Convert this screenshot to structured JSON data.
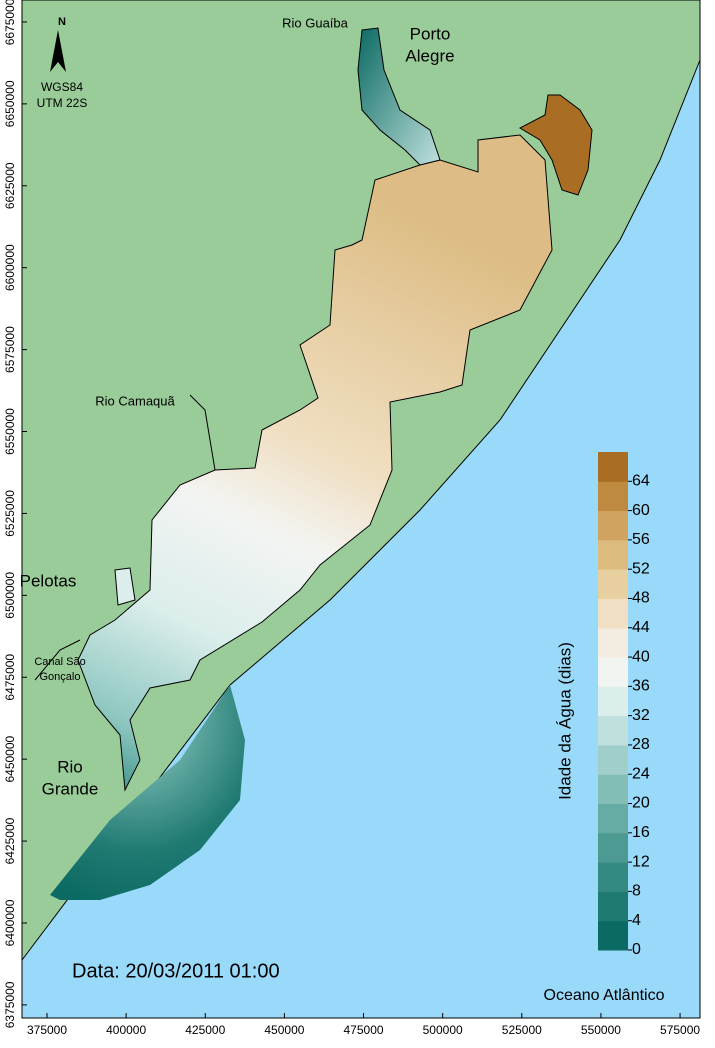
{
  "map": {
    "places": {
      "rio_guaiba": [
        "Rio Guaíba"
      ],
      "porto_alegre": [
        "Porto",
        "Alegre"
      ],
      "rio_camaqua": [
        "Rio Camaquã"
      ],
      "pelotas": [
        "Pelotas"
      ],
      "canal": [
        "Canal São",
        "Gonçalo"
      ],
      "rio_grande": [
        "Rio",
        "Grande"
      ],
      "ocean": [
        "Oceano Atlântico"
      ]
    },
    "north": "N",
    "projection": [
      "WGS84",
      "UTM 22S"
    ],
    "date": "Data: 20/03/2011 01:00",
    "xlim": [
      367100,
      581300
    ],
    "xticks": [
      375000,
      400000,
      425000,
      450000,
      475000,
      500000,
      525000,
      550000,
      575000
    ],
    "ylim": [
      6371000,
      6681700
    ],
    "yticks": [
      6375000,
      6400000,
      6425000,
      6450000,
      6475000,
      6500000,
      6525000,
      6550000,
      6575000,
      6600000,
      6625000,
      6650000,
      6675000
    ],
    "colorbar": {
      "label": "Idade da Água (dias)",
      "lim": [
        0,
        68
      ],
      "ticks": [
        0,
        4,
        8,
        12,
        16,
        20,
        24,
        28,
        32,
        36,
        40,
        44,
        48,
        52,
        56,
        60,
        64
      ],
      "colors": [
        "#0b6a63",
        "#1f7a72",
        "#348a82",
        "#4c9a92",
        "#66aca4",
        "#82bdb6",
        "#a0cfc9",
        "#bfe0dc",
        "#dbeeec",
        "#f2f4f2",
        "#f3ece0",
        "#f0dfc2",
        "#e8cf9f",
        "#dcbb7f",
        "#cfa460",
        "#bd8a40",
        "#a96e23"
      ]
    }
  }
}
